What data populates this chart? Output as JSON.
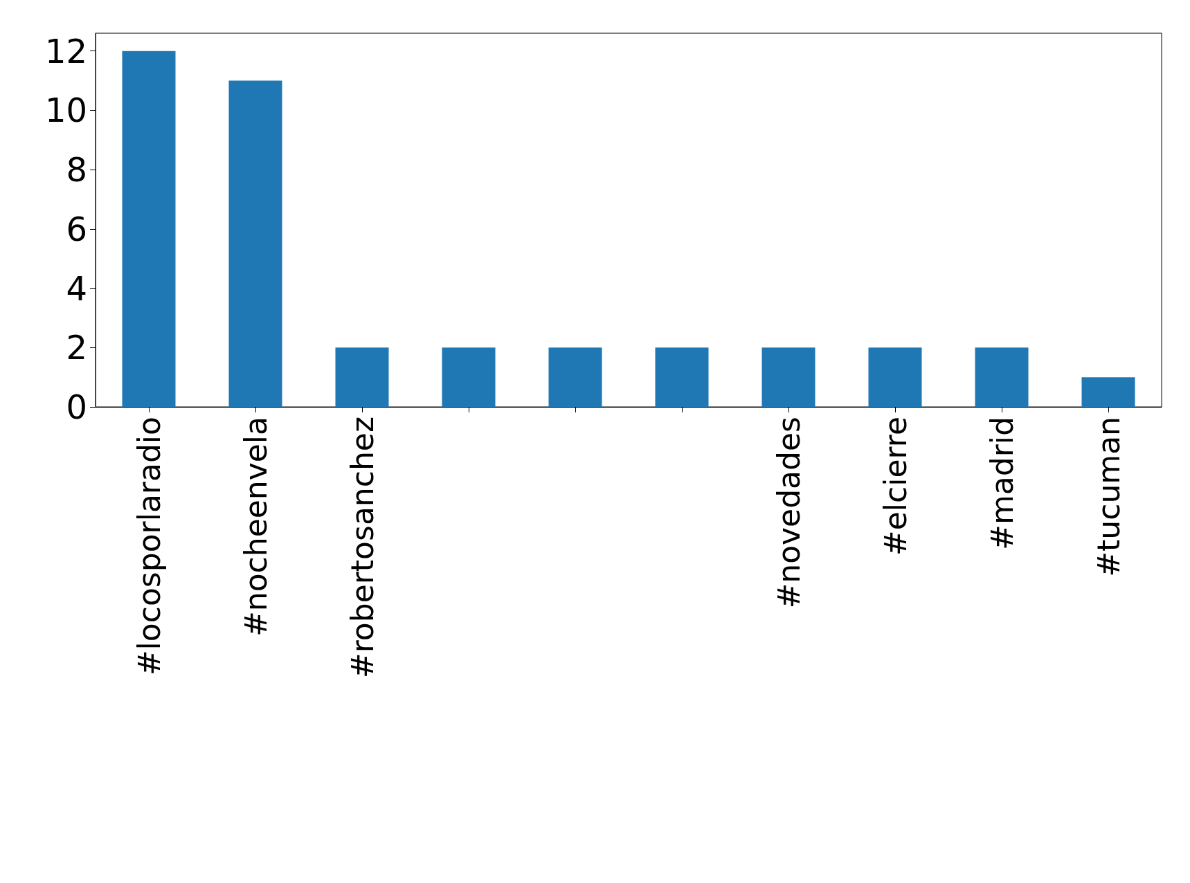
{
  "chart_data": {
    "type": "bar",
    "categories": [
      "#locosporlaradio",
      "#nocheenvela",
      "#robertosanchez",
      null,
      null,
      null,
      "#novedades",
      "#elcierre",
      "#madrid",
      "#tucuman"
    ],
    "values": [
      12,
      11,
      2,
      2,
      2,
      2,
      2,
      2,
      2,
      1
    ],
    "color": "#1f77b4",
    "ylim": [
      0,
      12.6
    ],
    "yticks": [
      0,
      2,
      4,
      6,
      8,
      10,
      12
    ],
    "grid": false
  }
}
